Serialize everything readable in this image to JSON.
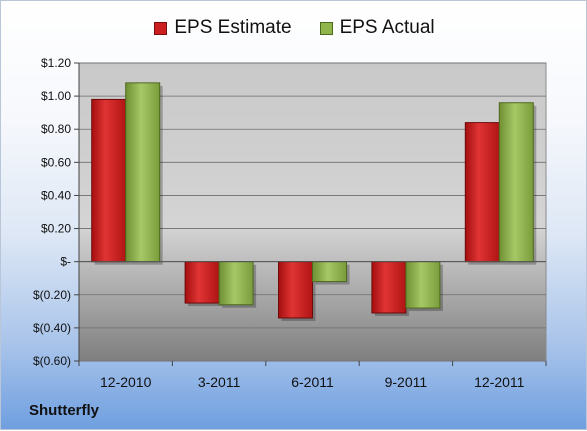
{
  "chart_data": {
    "type": "bar",
    "categories": [
      "12-2010",
      "3-2011",
      "6-2011",
      "9-2011",
      "12-2011"
    ],
    "series": [
      {
        "name": "EPS Estimate",
        "values": [
          0.98,
          -0.25,
          -0.34,
          -0.31,
          0.84
        ],
        "color": "#cc1f1f"
      },
      {
        "name": "EPS Actual",
        "values": [
          1.08,
          -0.26,
          -0.12,
          -0.28,
          0.96
        ],
        "color": "#8fb44a"
      }
    ],
    "ylim": [
      -0.6,
      1.2
    ],
    "yticks": [
      1.2,
      1.0,
      0.8,
      0.6,
      0.4,
      0.2,
      0,
      -0.2,
      -0.4,
      -0.6
    ],
    "ytick_labels": [
      "$1.20",
      "$1.00",
      "$0.80",
      "$0.60",
      "$0.40",
      "$0.20",
      "$-",
      "$(0.20)",
      "$(0.40)",
      "$(0.60)"
    ],
    "grid": true,
    "legend": "top-center"
  },
  "legend": {
    "estimate": "EPS Estimate",
    "actual": "EPS Actual"
  },
  "footer": {
    "company": "Shutterfly"
  }
}
